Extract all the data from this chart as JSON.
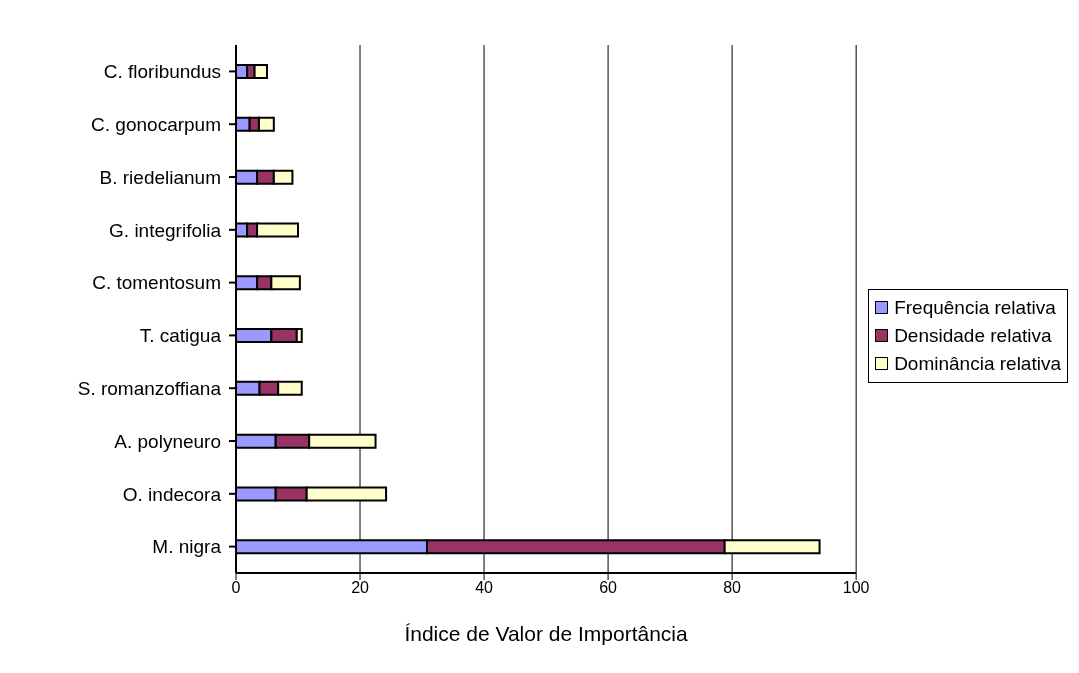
{
  "chart_data": {
    "type": "bar",
    "orientation": "horizontal",
    "stacked": true,
    "xlabel": "Índice de Valor de Importância",
    "categories": [
      "C. floribundus",
      "C. gonocarpum",
      "B. riedelianum",
      "G. integrifolia",
      "C. tomentosum",
      "T. catigua",
      "S. romanzoffiana",
      "A. polyneuro ",
      "O. indecora",
      "M. nigra"
    ],
    "series": [
      {
        "name": "Frequência relativa",
        "color": "#9999ff",
        "values": [
          1.8,
          2.2,
          3.4,
          1.8,
          3.4,
          5.7,
          3.8,
          6.4,
          6.4,
          30.8
        ]
      },
      {
        "name": "Densidade relativa",
        "color": "#993366",
        "values": [
          1.2,
          1.5,
          2.7,
          1.6,
          2.3,
          4.1,
          3.0,
          5.4,
          5.0,
          48.0
        ]
      },
      {
        "name": "Dominância relativa",
        "color": "#ffffcc",
        "values": [
          2.0,
          2.4,
          3.0,
          6.6,
          4.6,
          0.8,
          3.8,
          10.7,
          12.8,
          15.3
        ]
      }
    ],
    "xlim": [
      0,
      100
    ],
    "xticks": [
      0,
      20,
      40,
      60,
      80,
      100
    ],
    "grid": "x",
    "legend": "right"
  }
}
